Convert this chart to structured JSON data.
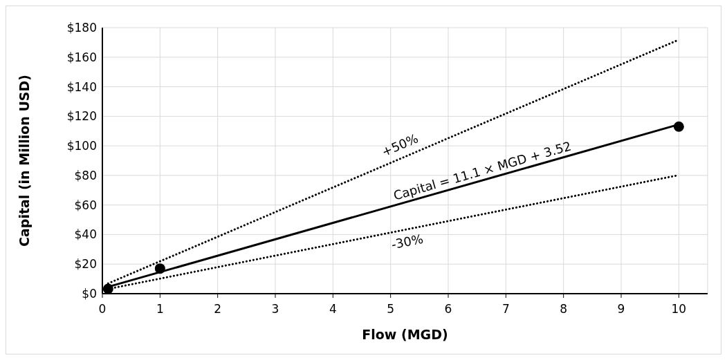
{
  "chart_data": {
    "type": "scatter",
    "xlabel": "Flow (MGD)",
    "ylabel": "Capital (in Million USD)",
    "xlim": [
      0,
      10.5
    ],
    "xticks": [
      0,
      1,
      2,
      3,
      4,
      5,
      6,
      7,
      8,
      9,
      10
    ],
    "ylim": [
      0,
      180
    ],
    "yticks": [
      {
        "value": 0,
        "label": "$0"
      },
      {
        "value": 20,
        "label": "$20"
      },
      {
        "value": 40,
        "label": "$40"
      },
      {
        "value": 60,
        "label": "$60"
      },
      {
        "value": 80,
        "label": "$80"
      },
      {
        "value": 100,
        "label": "$100"
      },
      {
        "value": 120,
        "label": "$120"
      },
      {
        "value": 140,
        "label": "$140"
      },
      {
        "value": 160,
        "label": "$160"
      },
      {
        "value": 180,
        "label": "$180"
      }
    ],
    "grid": true,
    "series": [
      {
        "type": "line",
        "name": "Capital = 11.1 × MGD + 3.52",
        "color": "#000000",
        "x": [
          0.1,
          10
        ],
        "values": [
          4.6,
          114.5
        ],
        "line_style": "solid",
        "marker": "none"
      },
      {
        "type": "line",
        "name": "+50%",
        "color": "#000000",
        "x": [
          0.1,
          10
        ],
        "values": [
          6.9,
          171.8
        ],
        "line_style": "dotted",
        "marker": "none"
      },
      {
        "type": "line",
        "name": "-30%",
        "color": "#000000",
        "x": [
          0.1,
          10
        ],
        "values": [
          3.2,
          80.2
        ],
        "line_style": "dotted",
        "marker": "none"
      },
      {
        "color": "#000000",
        "x": [
          0.1,
          1,
          10
        ],
        "values": [
          3.3,
          17,
          113
        ],
        "marker": "circle"
      }
    ]
  }
}
